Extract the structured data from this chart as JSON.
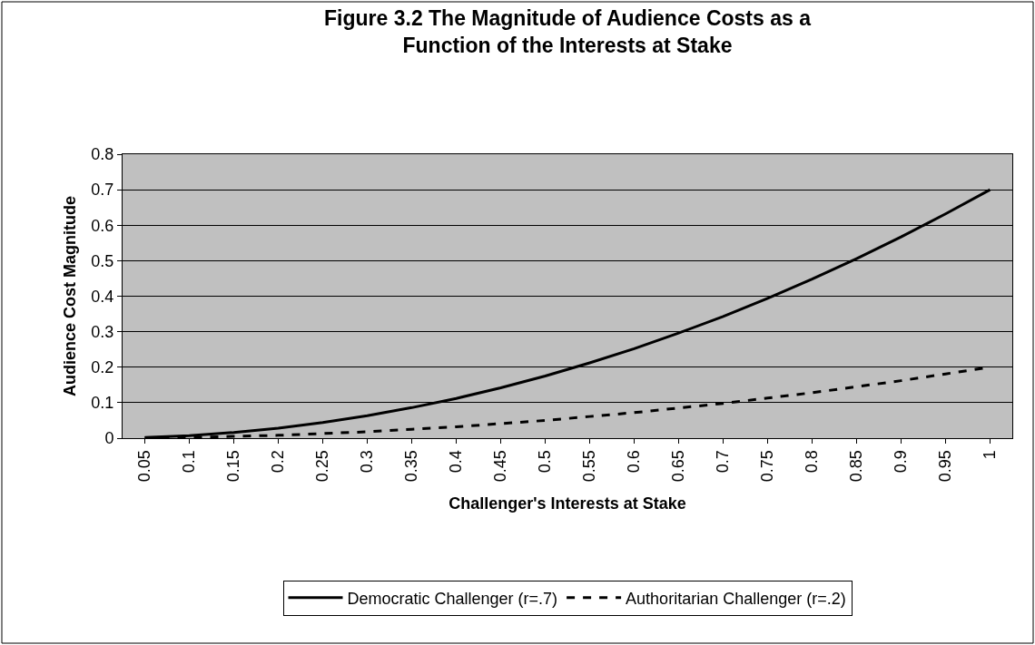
{
  "chart_data": {
    "type": "line",
    "title": "Figure 3.2 The Magnitude of Audience Costs as a\nFunction of the Interests at Stake",
    "xlabel": "Challenger's Interests at Stake",
    "ylabel": "Audience Cost Magnitude",
    "categories": [
      "0.05",
      "0.1",
      "0.15",
      "0.2",
      "0.25",
      "0.3",
      "0.35",
      "0.4",
      "0.45",
      "0.5",
      "0.55",
      "0.6",
      "0.65",
      "0.7",
      "0.75",
      "0.8",
      "0.85",
      "0.9",
      "0.95",
      "1"
    ],
    "series": [
      {
        "name": "Democratic Challenger (r=.7)",
        "color": "#000000",
        "line_style": "solid",
        "values": [
          0.002,
          0.007,
          0.016,
          0.028,
          0.044,
          0.063,
          0.086,
          0.112,
          0.142,
          0.175,
          0.212,
          0.252,
          0.296,
          0.343,
          0.394,
          0.448,
          0.506,
          0.567,
          0.632,
          0.7
        ]
      },
      {
        "name": "Authoritarian Challenger (r=.2)",
        "color": "#000000",
        "line_style": "dashed",
        "values": [
          0.001,
          0.002,
          0.005,
          0.008,
          0.013,
          0.018,
          0.025,
          0.032,
          0.041,
          0.05,
          0.061,
          0.072,
          0.085,
          0.098,
          0.113,
          0.128,
          0.145,
          0.162,
          0.181,
          0.2
        ]
      }
    ],
    "ylim": [
      0,
      0.8
    ],
    "yticks": [
      0,
      0.1,
      0.2,
      0.3,
      0.4,
      0.5,
      0.6,
      0.7,
      0.8
    ],
    "grid": "y",
    "legend": "bottom",
    "marker": "none"
  }
}
